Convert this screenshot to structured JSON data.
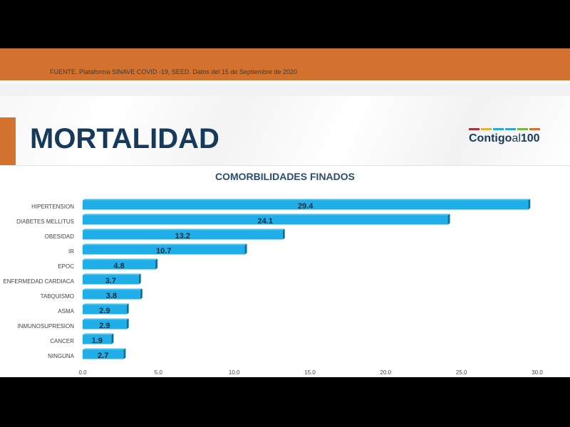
{
  "header": {
    "source": "FUENTE. Plataforma SINAVE COVID -19, SEED. Datos del 15 de Septiembre de 2020",
    "title": "MORTALIDAD",
    "logo": {
      "part1": "Contigo",
      "part2": "al",
      "part3": "100",
      "stripe_colors": [
        "#a3343a",
        "#d9b43a",
        "#2ea6d8",
        "#2ea6d8",
        "#7bb44a",
        "#d2722e"
      ]
    }
  },
  "colors": {
    "orange": "#d2722e",
    "navy": "#163a5c",
    "bar": "#1faee8",
    "bar_side": "#0b6fa0"
  },
  "chart_data": {
    "type": "bar",
    "orientation": "horizontal",
    "title": "COMORBILIDADES FINADOS",
    "categories": [
      "HIPERTENSION",
      "DIABETES MELLITUS",
      "OBESIDAD",
      "IR",
      "EPOC",
      "ENFERMEDAD CARDIACA",
      "TABQUISMO",
      "ASMA",
      "INMUNOSUPRESION",
      "CANCER",
      "NINGUNA"
    ],
    "values": [
      29.4,
      24.1,
      13.2,
      10.7,
      4.8,
      3.7,
      3.8,
      2.9,
      2.9,
      1.9,
      2.7
    ],
    "xlim": [
      0,
      30
    ],
    "xticks": [
      "0.0",
      "5.0",
      "10.0",
      "15.0",
      "20.0",
      "25.0",
      "30.0"
    ],
    "grid": false
  }
}
